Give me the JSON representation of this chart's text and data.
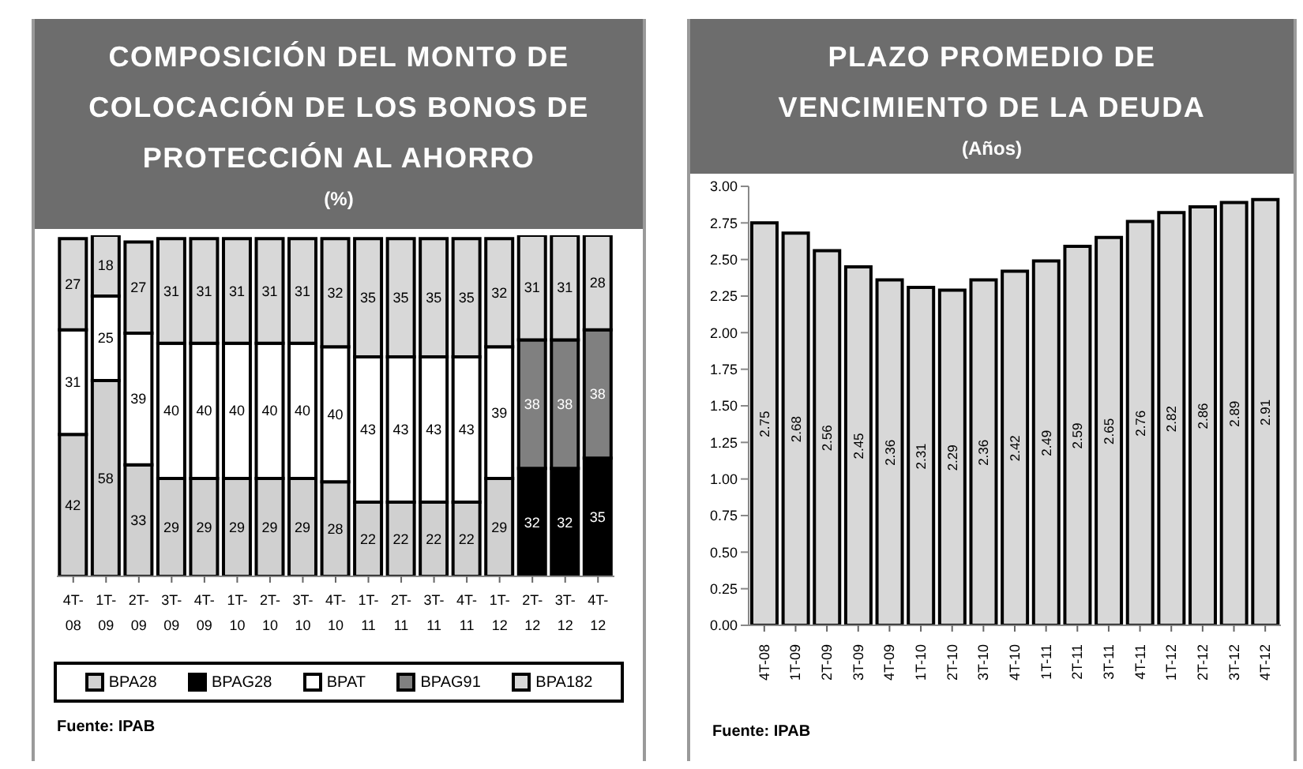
{
  "chart_data": [
    {
      "type": "bar",
      "title": "COMPOSICIÓN DEL MONTO DE COLOCACIÓN DE LOS BONOS DE PROTECCIÓN AL AHORRO",
      "subtitle": "(%)",
      "categories": [
        "4T-08",
        "1T-09",
        "2T-09",
        "3T-09",
        "4T-09",
        "1T-10",
        "2T-10",
        "3T-10",
        "4T-10",
        "1T-11",
        "2T-11",
        "3T-11",
        "4T-11",
        "1T-12",
        "2T-12",
        "3T-12",
        "4T-12"
      ],
      "stacked": true,
      "data_labels": true,
      "legend": "bottom",
      "tick_labels": "x",
      "series": [
        {
          "name": "BPA28",
          "color": "#d0d0d0",
          "values": [
            42,
            58,
            33,
            29,
            29,
            29,
            29,
            29,
            28,
            22,
            22,
            22,
            22,
            29,
            null,
            null,
            null
          ]
        },
        {
          "name": "BPAG28",
          "color": "#000000",
          "values": [
            null,
            null,
            null,
            null,
            null,
            null,
            null,
            null,
            null,
            null,
            null,
            null,
            null,
            null,
            32,
            32,
            35
          ]
        },
        {
          "name": "BPAT",
          "color": "#ffffff",
          "values": [
            31,
            25,
            39,
            40,
            40,
            40,
            40,
            40,
            40,
            43,
            43,
            43,
            43,
            39,
            null,
            null,
            null
          ]
        },
        {
          "name": "BPAG91",
          "color": "#808080",
          "values": [
            null,
            null,
            null,
            null,
            null,
            null,
            null,
            null,
            null,
            null,
            null,
            null,
            null,
            null,
            38,
            38,
            38
          ]
        },
        {
          "name": "BPA182",
          "color": "#d8d8d8",
          "values": [
            27,
            18,
            27,
            31,
            31,
            31,
            31,
            31,
            32,
            35,
            35,
            35,
            35,
            32,
            31,
            31,
            28
          ]
        }
      ],
      "annotations": [
        "Fuente: IPAB"
      ]
    },
    {
      "type": "bar",
      "title": "PLAZO PROMEDIO DE VENCIMIENTO DE LA DEUDA",
      "subtitle": "(Años)",
      "categories": [
        "4T-08",
        "1T-09",
        "2T-09",
        "3T-09",
        "4T-09",
        "1T-10",
        "2T-10",
        "3T-10",
        "4T-10",
        "1T-11",
        "2T-11",
        "3T-11",
        "4T-11",
        "1T-12",
        "2T-12",
        "3T-12",
        "4T-12"
      ],
      "values": [
        2.75,
        2.68,
        2.56,
        2.45,
        2.36,
        2.31,
        2.29,
        2.36,
        2.42,
        2.49,
        2.59,
        2.65,
        2.76,
        2.82,
        2.86,
        2.89,
        2.91
      ],
      "color": "#d8d8d8",
      "data_labels": true,
      "ylim": [
        0,
        3
      ],
      "yticks": [
        {
          "value": 0,
          "label": "0.00"
        },
        {
          "value": 0.25,
          "label": "0.25"
        },
        {
          "value": 0.5,
          "label": "0.50"
        },
        {
          "value": 0.75,
          "label": "0.75"
        },
        {
          "value": 1,
          "label": "1.00"
        },
        {
          "value": 1.25,
          "label": "1.25"
        },
        {
          "value": 1.5,
          "label": "1.50"
        },
        {
          "value": 1.75,
          "label": "1.75"
        },
        {
          "value": 2,
          "label": "2.00"
        },
        {
          "value": 2.25,
          "label": "2.25"
        },
        {
          "value": 2.5,
          "label": "2.50"
        },
        {
          "value": 2.75,
          "label": "2.75"
        },
        {
          "value": 3,
          "label": "3.00"
        }
      ],
      "annotations": [
        "Fuente: IPAB"
      ]
    }
  ]
}
